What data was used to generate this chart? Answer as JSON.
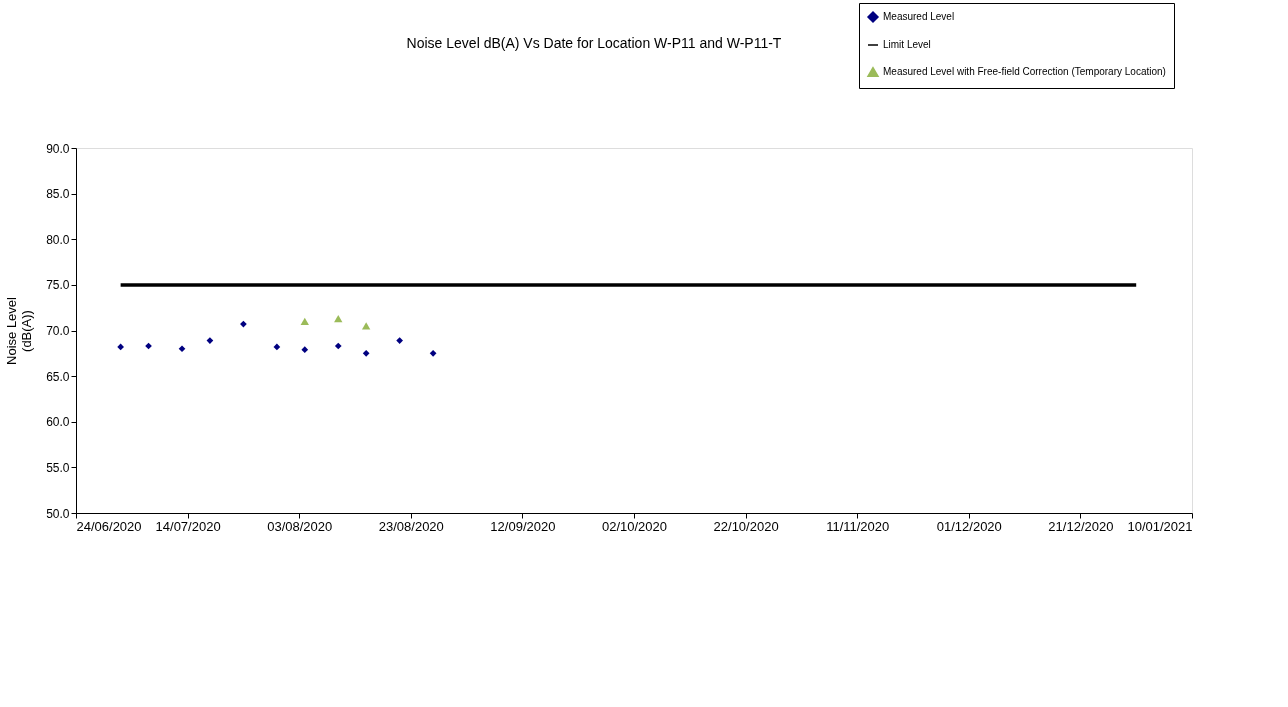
{
  "chart_data": {
    "type": "scatter",
    "title": "Noise Level dB(A) Vs Date for Location W-P11 and W-P11-T",
    "ylabel": "Noise Level (dB(A))",
    "series": [
      {
        "name": "Measured Level",
        "type": "scatter",
        "marker": "diamond",
        "color": "#000080",
        "x": [
          "2020-07-02",
          "2020-07-07",
          "2020-07-13",
          "2020-07-18",
          "2020-07-24",
          "2020-07-30",
          "2020-08-04",
          "2020-08-10",
          "2020-08-15",
          "2020-08-21",
          "2020-08-27"
        ],
        "values": [
          68.2,
          68.3,
          68.0,
          68.9,
          70.7,
          68.2,
          67.9,
          68.3,
          67.5,
          68.9,
          67.5
        ]
      },
      {
        "name": "Limit Level",
        "type": "line",
        "marker": "none",
        "color": "#000000",
        "line_style": "solid",
        "x": [
          "2020-07-02",
          "2020-12-31"
        ],
        "values": [
          75.0,
          75.0
        ]
      },
      {
        "name": "Measured Level with Free-field Correction (Temporary Location)",
        "type": "scatter",
        "marker": "triangle",
        "color": "#9bbb59",
        "x": [
          "2020-08-04",
          "2020-08-10",
          "2020-08-15"
        ],
        "values": [
          71.0,
          71.3,
          70.5
        ]
      }
    ],
    "xlim": [
      "2020-06-24",
      "2021-01-10"
    ],
    "xticks": [
      {
        "value": "2020-06-24",
        "label": "24/06/2020"
      },
      {
        "value": "2020-07-14",
        "label": "14/07/2020"
      },
      {
        "value": "2020-08-03",
        "label": "03/08/2020"
      },
      {
        "value": "2020-08-23",
        "label": "23/08/2020"
      },
      {
        "value": "2020-09-12",
        "label": "12/09/2020"
      },
      {
        "value": "2020-10-02",
        "label": "02/10/2020"
      },
      {
        "value": "2020-10-22",
        "label": "22/10/2020"
      },
      {
        "value": "2020-11-11",
        "label": "11/11/2020"
      },
      {
        "value": "2020-12-01",
        "label": "01/12/2020"
      },
      {
        "value": "2020-12-21",
        "label": "21/12/2020"
      },
      {
        "value": "2021-01-10",
        "label": "10/01/2021"
      }
    ],
    "ylim": [
      50,
      90
    ],
    "yticks": [
      {
        "value": 50,
        "label": "50.0"
      },
      {
        "value": 55,
        "label": "55.0"
      },
      {
        "value": 60,
        "label": "60.0"
      },
      {
        "value": 65,
        "label": "65.0"
      },
      {
        "value": 70,
        "label": "70.0"
      },
      {
        "value": 75,
        "label": "75.0"
      },
      {
        "value": 80,
        "label": "80.0"
      },
      {
        "value": 85,
        "label": "85.0"
      },
      {
        "value": 90,
        "label": "90.0"
      }
    ],
    "grid": false,
    "legend": "top right"
  }
}
